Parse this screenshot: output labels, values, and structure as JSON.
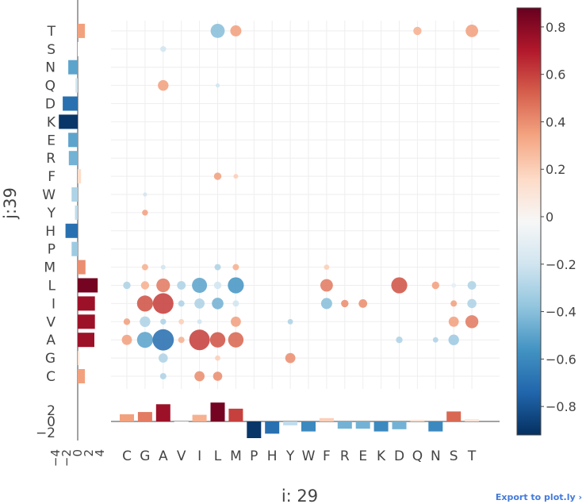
{
  "export_link": "Export to plot.ly ›",
  "colors": {
    "scale": [
      "#053061",
      "#2166ac",
      "#4393c3",
      "#92c5de",
      "#d1e5f0",
      "#f7f7f7",
      "#fddbc7",
      "#f4a582",
      "#d6604d",
      "#b2182b",
      "#67001f"
    ],
    "grid": "#eeeeee",
    "axis": "#444444"
  },
  "chart_data": {
    "type": "scatter",
    "xlabel": "i: 29",
    "ylabel": "j:39",
    "x_categories": [
      "C",
      "G",
      "A",
      "V",
      "I",
      "L",
      "M",
      "P",
      "H",
      "Y",
      "W",
      "F",
      "R",
      "E",
      "K",
      "D",
      "Q",
      "N",
      "S",
      "T"
    ],
    "y_categories": [
      "C",
      "G",
      "A",
      "V",
      "I",
      "L",
      "M",
      "P",
      "H",
      "Y",
      "W",
      "F",
      "R",
      "E",
      "K",
      "D",
      "Q",
      "N",
      "S",
      "T"
    ],
    "colorbar": {
      "range": [
        -0.92,
        0.88
      ],
      "ticks": [
        0.8,
        0.6,
        0.4,
        0.2,
        0,
        -0.2,
        -0.4,
        -0.6,
        -0.8
      ],
      "tick_labels": [
        "0.8",
        "0.6",
        "0.4",
        "0.2",
        "0",
        "−0.2",
        "−0.4",
        "−0.6",
        "−0.8"
      ]
    },
    "bubbles": [
      {
        "x": "L",
        "y": "T",
        "value": -0.4,
        "size": 0.35
      },
      {
        "x": "M",
        "y": "T",
        "value": 0.35,
        "size": 0.22
      },
      {
        "x": "Q",
        "y": "T",
        "value": 0.3,
        "size": 0.12
      },
      {
        "x": "T",
        "y": "T",
        "value": 0.35,
        "size": 0.28
      },
      {
        "x": "A",
        "y": "S",
        "value": -0.2,
        "size": 0.06
      },
      {
        "x": "A",
        "y": "Q",
        "value": 0.35,
        "size": 0.2
      },
      {
        "x": "L",
        "y": "Q",
        "value": -0.2,
        "size": 0.03
      },
      {
        "x": "L",
        "y": "F",
        "value": 0.35,
        "size": 0.1
      },
      {
        "x": "M",
        "y": "F",
        "value": 0.2,
        "size": 0.04
      },
      {
        "x": "G",
        "y": "W",
        "value": -0.2,
        "size": 0.03
      },
      {
        "x": "G",
        "y": "Y",
        "value": 0.35,
        "size": 0.06
      },
      {
        "x": "G",
        "y": "M",
        "value": 0.3,
        "size": 0.07
      },
      {
        "x": "A",
        "y": "M",
        "value": -0.2,
        "size": 0.04
      },
      {
        "x": "L",
        "y": "M",
        "value": -0.3,
        "size": 0.07
      },
      {
        "x": "M",
        "y": "M",
        "value": 0.3,
        "size": 0.07
      },
      {
        "x": "F",
        "y": "M",
        "value": 0.2,
        "size": 0.05
      },
      {
        "x": "C",
        "y": "L",
        "value": -0.3,
        "size": 0.1
      },
      {
        "x": "G",
        "y": "L",
        "value": 0.3,
        "size": 0.12
      },
      {
        "x": "A",
        "y": "L",
        "value": 0.45,
        "size": 0.33
      },
      {
        "x": "V",
        "y": "L",
        "value": -0.3,
        "size": 0.13
      },
      {
        "x": "I",
        "y": "L",
        "value": -0.5,
        "size": 0.4
      },
      {
        "x": "L",
        "y": "L",
        "value": -0.2,
        "size": 0.1
      },
      {
        "x": "M",
        "y": "L",
        "value": -0.55,
        "size": 0.45
      },
      {
        "x": "F",
        "y": "L",
        "value": 0.45,
        "size": 0.28
      },
      {
        "x": "D",
        "y": "L",
        "value": 0.55,
        "size": 0.45
      },
      {
        "x": "N",
        "y": "L",
        "value": 0.35,
        "size": 0.1
      },
      {
        "x": "S",
        "y": "L",
        "value": -0.1,
        "size": 0.04
      },
      {
        "x": "T",
        "y": "L",
        "value": -0.3,
        "size": 0.13
      },
      {
        "x": "G",
        "y": "I",
        "value": 0.55,
        "size": 0.45
      },
      {
        "x": "A",
        "y": "I",
        "value": 0.6,
        "size": 0.75
      },
      {
        "x": "V",
        "y": "I",
        "value": -0.3,
        "size": 0.07
      },
      {
        "x": "I",
        "y": "I",
        "value": -0.3,
        "size": 0.18
      },
      {
        "x": "L",
        "y": "I",
        "value": -0.45,
        "size": 0.24
      },
      {
        "x": "M",
        "y": "I",
        "value": -0.2,
        "size": 0.07
      },
      {
        "x": "F",
        "y": "I",
        "value": -0.4,
        "size": 0.22
      },
      {
        "x": "R",
        "y": "I",
        "value": 0.4,
        "size": 0.1
      },
      {
        "x": "E",
        "y": "I",
        "value": 0.4,
        "size": 0.13
      },
      {
        "x": "S",
        "y": "I",
        "value": 0.35,
        "size": 0.07
      },
      {
        "x": "T",
        "y": "I",
        "value": -0.3,
        "size": 0.15
      },
      {
        "x": "C",
        "y": "V",
        "value": 0.35,
        "size": 0.08
      },
      {
        "x": "G",
        "y": "V",
        "value": -0.3,
        "size": 0.2
      },
      {
        "x": "A",
        "y": "V",
        "value": -0.3,
        "size": 0.06
      },
      {
        "x": "V",
        "y": "V",
        "value": 0.2,
        "size": 0.05
      },
      {
        "x": "I",
        "y": "V",
        "value": -0.2,
        "size": 0.04
      },
      {
        "x": "M",
        "y": "V",
        "value": 0.35,
        "size": 0.18
      },
      {
        "x": "Y",
        "y": "V",
        "value": -0.3,
        "size": 0.05
      },
      {
        "x": "S",
        "y": "V",
        "value": 0.35,
        "size": 0.18
      },
      {
        "x": "T",
        "y": "V",
        "value": 0.45,
        "size": 0.3
      },
      {
        "x": "C",
        "y": "A",
        "value": 0.35,
        "size": 0.18
      },
      {
        "x": "G",
        "y": "A",
        "value": -0.5,
        "size": 0.45
      },
      {
        "x": "A",
        "y": "A",
        "value": -0.7,
        "size": 0.8
      },
      {
        "x": "V",
        "y": "A",
        "value": 0.3,
        "size": 0.07
      },
      {
        "x": "I",
        "y": "A",
        "value": 0.6,
        "size": 0.75
      },
      {
        "x": "L",
        "y": "A",
        "value": 0.55,
        "size": 0.42
      },
      {
        "x": "M",
        "y": "A",
        "value": 0.5,
        "size": 0.42
      },
      {
        "x": "D",
        "y": "A",
        "value": -0.3,
        "size": 0.08
      },
      {
        "x": "N",
        "y": "A",
        "value": -0.3,
        "size": 0.05
      },
      {
        "x": "S",
        "y": "A",
        "value": -0.35,
        "size": 0.2
      },
      {
        "x": "A",
        "y": "G",
        "value": -0.3,
        "size": 0.15
      },
      {
        "x": "L",
        "y": "G",
        "value": 0.2,
        "size": 0.05
      },
      {
        "x": "Y",
        "y": "G",
        "value": 0.4,
        "size": 0.18
      },
      {
        "x": "A",
        "y": "C",
        "value": -0.3,
        "size": 0.07
      },
      {
        "x": "I",
        "y": "C",
        "value": 0.4,
        "size": 0.18
      },
      {
        "x": "L",
        "y": "C",
        "value": 0.4,
        "size": 0.15
      }
    ],
    "x_marginal": {
      "ylim": [
        -2.9,
        3.4
      ],
      "tick_labels": [
        "2",
        "0",
        "−2"
      ],
      "ticks": [
        2,
        0,
        -2
      ],
      "values": [
        1.3,
        1.7,
        3.1,
        0.0,
        1.2,
        3.4,
        2.3,
        -3.0,
        -2.2,
        -0.7,
        -1.8,
        0.6,
        -1.3,
        -1.3,
        -1.8,
        -1.4,
        0.3,
        -1.8,
        1.8,
        0.4
      ],
      "colors": [
        0.35,
        0.45,
        0.75,
        0.0,
        0.3,
        0.85,
        0.6,
        -0.9,
        -0.7,
        -0.25,
        -0.6,
        0.2,
        -0.45,
        -0.45,
        -0.6,
        -0.45,
        0.1,
        -0.6,
        0.5,
        0.1
      ]
    },
    "y_marginal": {
      "xlim": [
        -3.5,
        4.5
      ],
      "tick_labels": [
        "4",
        "2",
        "0",
        "−2",
        "−4"
      ],
      "ticks": [
        4,
        2,
        0,
        -2,
        -4
      ],
      "values": [
        1.3,
        0.3,
        3.0,
        3.1,
        3.1,
        3.6,
        1.4,
        -1.1,
        -2.2,
        -0.5,
        -1.1,
        0.6,
        -1.6,
        -1.7,
        -3.4,
        -2.7,
        -0.4,
        -1.7,
        0.0,
        1.3
      ],
      "colors": [
        0.35,
        0.1,
        0.75,
        0.75,
        0.75,
        0.85,
        0.4,
        -0.35,
        -0.7,
        -0.25,
        -0.3,
        0.15,
        -0.45,
        -0.5,
        -0.9,
        -0.7,
        -0.2,
        -0.5,
        0.0,
        0.35
      ]
    }
  }
}
